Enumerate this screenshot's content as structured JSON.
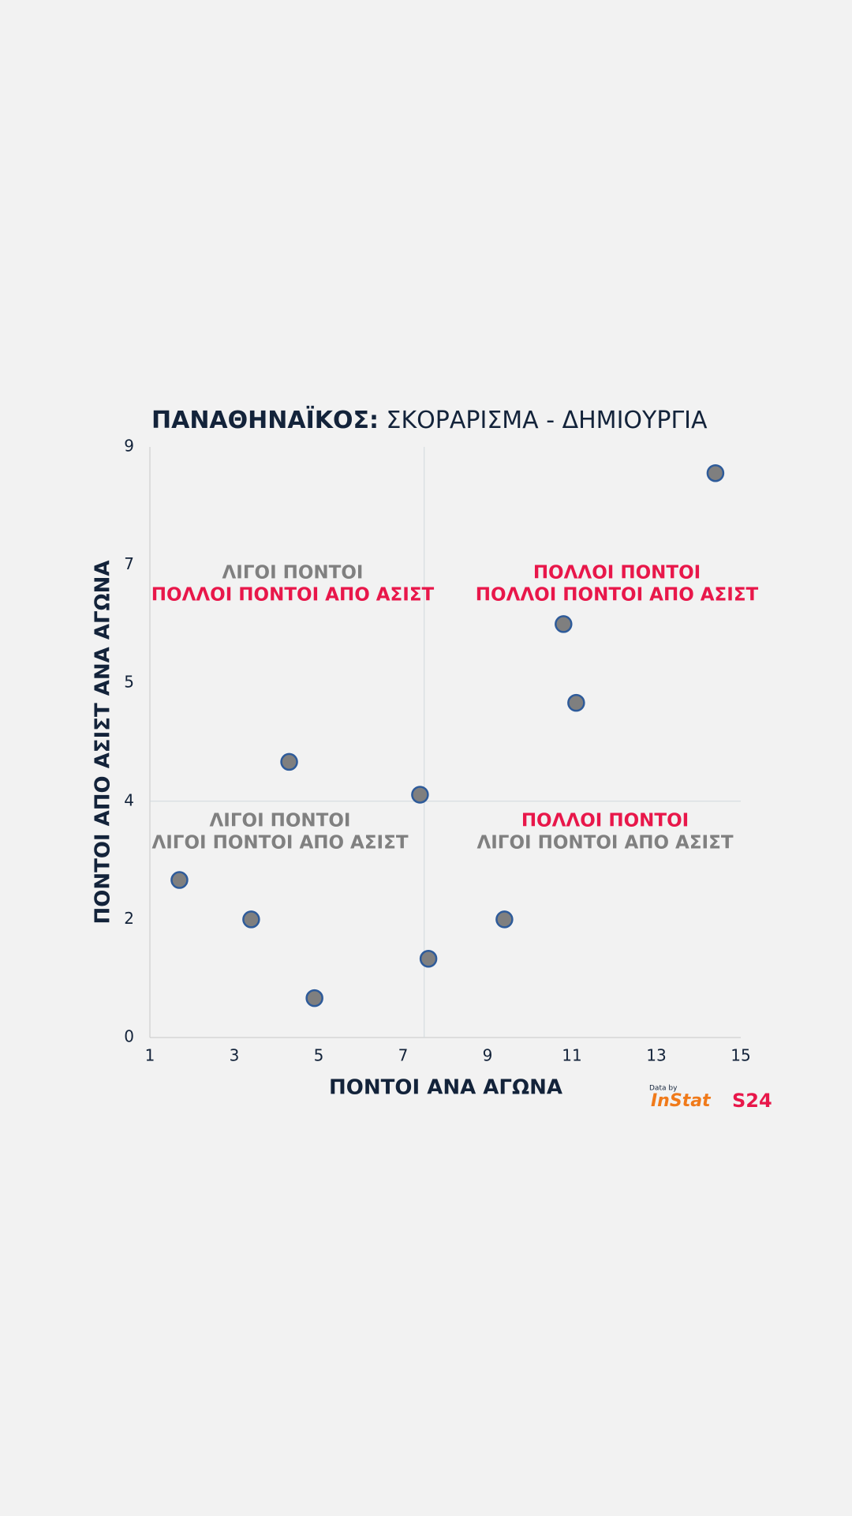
{
  "chart_data": {
    "type": "scatter",
    "title": {
      "bold": "ΠΑΝΑΘΗΝΑΪΚΟΣ:",
      "rest": "ΣΚΟΡΑΡΙΣΜΑ - ΔΗΜΙΟΥΡΓΙΑ"
    },
    "x_label": "ΠΟΝΤΟΙ ΑΝΑ ΑΓΩΝΑ",
    "y_label": "ΠΟΝΤΟΙ ΑΠΟ ΑΣΙΣΤ ΑΝΑ ΑΓΩΝΑ",
    "x": [
      1.7,
      3.4,
      4.3,
      4.9,
      7.4,
      7.6,
      9.4,
      10.8,
      11.1,
      14.4
    ],
    "values": [
      2.4,
      1.8,
      4.2,
      0.6,
      3.7,
      1.2,
      1.8,
      6.3,
      5.1,
      8.6
    ],
    "color": "#7f7f7f",
    "edge_color": "#2e5b9a",
    "xlim": [
      1,
      15
    ],
    "xticks": [
      1,
      3,
      5,
      7,
      9,
      11,
      13,
      15
    ],
    "ylim": [
      0,
      9
    ],
    "yticks": [
      0,
      {
        "value": 1.8,
        "label": "2"
      },
      {
        "value": 3.6,
        "label": "4"
      },
      {
        "value": 5.4,
        "label": "5"
      },
      {
        "value": 7.2,
        "label": "7"
      },
      9
    ],
    "ref_x": 7.5,
    "ref_y": 3.6,
    "annotations": [
      {
        "quadrant": "top-left",
        "lines": [
          {
            "text": "ΛΙΓΟΙ ΠΟΝΤΟΙ",
            "color": "#808080"
          },
          {
            "text": "ΠΟΛΛΟΙ ΠΟΝΤΟΙ ΑΠΟ ΑΣΙΣΤ",
            "color": "#e8174a"
          }
        ]
      },
      {
        "quadrant": "top-right",
        "lines": [
          {
            "text": "ΠΟΛΛΟΙ ΠΟΝΤΟΙ",
            "color": "#e8174a"
          },
          {
            "text": "ΠΟΛΛΟΙ ΠΟΝΤΟΙ ΑΠΟ ΑΣΙΣΤ",
            "color": "#e8174a"
          }
        ]
      },
      {
        "quadrant": "bottom-left",
        "lines": [
          {
            "text": "ΛΙΓΟΙ ΠΟΝΤΟΙ",
            "color": "#808080"
          },
          {
            "text": "ΛΙΓΟΙ ΠΟΝΤΟΙ ΑΠΟ ΑΣΙΣΤ",
            "color": "#808080"
          }
        ]
      },
      {
        "quadrant": "bottom-right",
        "lines": [
          {
            "text": "ΠΟΛΛΟΙ ΠΟΝΤΟΙ",
            "color": "#e8174a"
          },
          {
            "text": "ΛΙΓΟΙ ΠΟΝΤΟΙ ΑΠΟ ΑΣΙΣΤ",
            "color": "#808080"
          }
        ]
      }
    ],
    "source": {
      "prefix": "Data by",
      "name": "InStat",
      "brand": "S24"
    }
  }
}
